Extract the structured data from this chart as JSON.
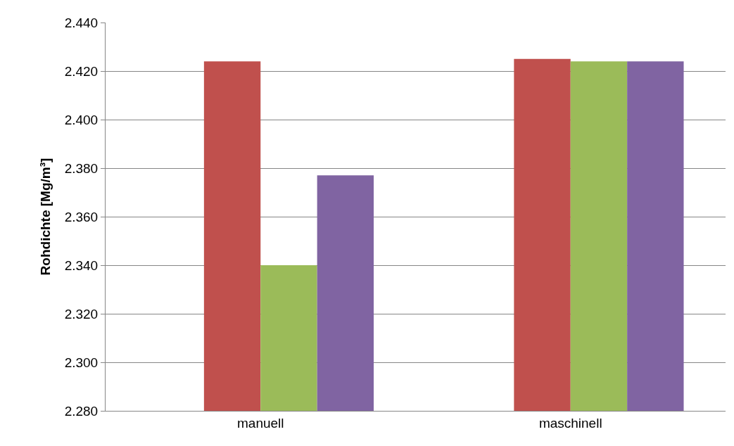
{
  "chart_data": {
    "type": "bar",
    "ylabel": "Rohdichte [Mg/m³]",
    "categories": [
      "manuell",
      "maschinell"
    ],
    "series": [
      {
        "color": "#4f81bd",
        "values": [
          null,
          null
        ]
      },
      {
        "color": "#c0504d",
        "values": [
          2.424,
          2.425
        ]
      },
      {
        "color": "#9bbb59",
        "values": [
          2.34,
          2.424
        ]
      },
      {
        "color": "#8064a2",
        "values": [
          2.377,
          2.424
        ]
      }
    ],
    "ylim": [
      2.28,
      2.44
    ],
    "yticks": [
      {
        "value": 2.28,
        "label": "2.280"
      },
      {
        "value": 2.3,
        "label": "2.300"
      },
      {
        "value": 2.32,
        "label": "2.320"
      },
      {
        "value": 2.34,
        "label": "2.340"
      },
      {
        "value": 2.36,
        "label": "2.360"
      },
      {
        "value": 2.38,
        "label": "2.380"
      },
      {
        "value": 2.4,
        "label": "2.400"
      },
      {
        "value": 2.42,
        "label": "2.420"
      },
      {
        "value": 2.44,
        "label": "2.440"
      }
    ],
    "grid": "y"
  }
}
